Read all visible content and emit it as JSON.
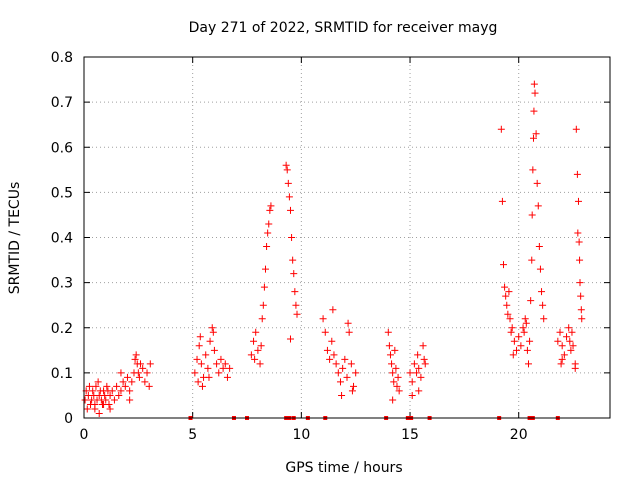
{
  "chart_data": {
    "type": "scatter",
    "title": "Day 271 of 2022, SRMTID for receiver mayg",
    "xlabel": "GPS time / hours",
    "ylabel": "SRMTID / TECUs",
    "xlim": [
      0,
      24.2
    ],
    "ylim": [
      0,
      0.8
    ],
    "xticks": [
      0,
      5,
      10,
      15,
      20
    ],
    "yticks": [
      0,
      0.1,
      0.2,
      0.3,
      0.4,
      0.5,
      0.6,
      0.7,
      0.8
    ],
    "xtick_labels": [
      "0",
      "5",
      "10",
      "15",
      "20"
    ],
    "ytick_labels": [
      "0",
      "0.1",
      "0.2",
      "0.3",
      "0.4",
      "0.5",
      "0.6",
      "0.7",
      "0.8"
    ],
    "grid": true,
    "marker": "plus",
    "color": "#ff0000",
    "series": [
      {
        "name": "SRMTID",
        "points": [
          [
            0.05,
            0.04
          ],
          [
            0.1,
            0.06
          ],
          [
            0.15,
            0.02
          ],
          [
            0.2,
            0.05
          ],
          [
            0.25,
            0.07
          ],
          [
            0.3,
            0.03
          ],
          [
            0.35,
            0.04
          ],
          [
            0.4,
            0.06
          ],
          [
            0.45,
            0.05
          ],
          [
            0.5,
            0.03
          ],
          [
            0.55,
            0.07
          ],
          [
            0.6,
            0.04
          ],
          [
            0.65,
            0.08
          ],
          [
            0.7,
            0.05
          ],
          [
            0.75,
            0.06
          ],
          [
            0.8,
            0.04
          ],
          [
            0.85,
            0.03
          ],
          [
            0.9,
            0.06
          ],
          [
            0.95,
            0.05
          ],
          [
            1.0,
            0.04
          ],
          [
            1.05,
            0.07
          ],
          [
            1.1,
            0.06
          ],
          [
            1.15,
            0.03
          ],
          [
            1.2,
            0.05
          ],
          [
            1.3,
            0.06
          ],
          [
            1.4,
            0.04
          ],
          [
            1.5,
            0.07
          ],
          [
            1.6,
            0.05
          ],
          [
            1.7,
            0.06
          ],
          [
            1.8,
            0.08
          ],
          [
            1.9,
            0.07
          ],
          [
            2.0,
            0.09
          ],
          [
            2.1,
            0.06
          ],
          [
            2.2,
            0.08
          ],
          [
            2.3,
            0.1
          ],
          [
            2.35,
            0.13
          ],
          [
            2.4,
            0.14
          ],
          [
            2.45,
            0.12
          ],
          [
            2.5,
            0.1
          ],
          [
            2.55,
            0.09
          ],
          [
            2.6,
            0.12
          ],
          [
            2.7,
            0.11
          ],
          [
            2.8,
            0.08
          ],
          [
            2.9,
            0.1
          ],
          [
            3.0,
            0.07
          ],
          [
            3.05,
            0.12
          ],
          [
            0.5,
            0.02
          ],
          [
            0.9,
            0.03
          ],
          [
            1.2,
            0.02
          ],
          [
            0.7,
            0.01
          ],
          [
            1.7,
            0.1
          ],
          [
            2.1,
            0.04
          ],
          [
            5.1,
            0.1
          ],
          [
            5.2,
            0.13
          ],
          [
            5.3,
            0.16
          ],
          [
            5.35,
            0.18
          ],
          [
            5.4,
            0.12
          ],
          [
            5.5,
            0.09
          ],
          [
            5.6,
            0.14
          ],
          [
            5.7,
            0.11
          ],
          [
            5.8,
            0.17
          ],
          [
            5.9,
            0.2
          ],
          [
            5.95,
            0.19
          ],
          [
            6.0,
            0.15
          ],
          [
            6.1,
            0.12
          ],
          [
            6.2,
            0.1
          ],
          [
            6.3,
            0.13
          ],
          [
            6.4,
            0.11
          ],
          [
            6.5,
            0.12
          ],
          [
            6.6,
            0.09
          ],
          [
            6.7,
            0.11
          ],
          [
            5.25,
            0.08
          ],
          [
            5.45,
            0.07
          ],
          [
            5.75,
            0.09
          ],
          [
            7.7,
            0.14
          ],
          [
            7.8,
            0.17
          ],
          [
            7.9,
            0.19
          ],
          [
            8.0,
            0.15
          ],
          [
            8.1,
            0.12
          ],
          [
            8.15,
            0.16
          ],
          [
            8.2,
            0.22
          ],
          [
            8.25,
            0.25
          ],
          [
            8.3,
            0.29
          ],
          [
            8.35,
            0.33
          ],
          [
            8.4,
            0.38
          ],
          [
            8.45,
            0.41
          ],
          [
            8.5,
            0.43
          ],
          [
            8.55,
            0.46
          ],
          [
            8.6,
            0.47
          ],
          [
            7.85,
            0.13
          ],
          [
            9.3,
            0.56
          ],
          [
            9.35,
            0.55
          ],
          [
            9.4,
            0.52
          ],
          [
            9.45,
            0.49
          ],
          [
            9.5,
            0.46
          ],
          [
            9.55,
            0.4
          ],
          [
            9.6,
            0.35
          ],
          [
            9.65,
            0.32
          ],
          [
            9.7,
            0.28
          ],
          [
            9.75,
            0.25
          ],
          [
            9.8,
            0.23
          ],
          [
            9.5,
            0.175
          ],
          [
            11.0,
            0.22
          ],
          [
            11.1,
            0.19
          ],
          [
            11.2,
            0.15
          ],
          [
            11.3,
            0.13
          ],
          [
            11.4,
            0.17
          ],
          [
            11.45,
            0.24
          ],
          [
            11.5,
            0.14
          ],
          [
            11.6,
            0.12
          ],
          [
            11.7,
            0.1
          ],
          [
            11.8,
            0.08
          ],
          [
            11.9,
            0.11
          ],
          [
            12.0,
            0.13
          ],
          [
            12.1,
            0.09
          ],
          [
            12.15,
            0.21
          ],
          [
            12.2,
            0.19
          ],
          [
            12.3,
            0.12
          ],
          [
            12.4,
            0.07
          ],
          [
            12.5,
            0.1
          ],
          [
            11.85,
            0.05
          ],
          [
            12.35,
            0.06
          ],
          [
            14.0,
            0.19
          ],
          [
            14.05,
            0.16
          ],
          [
            14.1,
            0.14
          ],
          [
            14.15,
            0.12
          ],
          [
            14.2,
            0.1
          ],
          [
            14.25,
            0.08
          ],
          [
            14.3,
            0.15
          ],
          [
            14.35,
            0.11
          ],
          [
            14.4,
            0.07
          ],
          [
            14.45,
            0.09
          ],
          [
            14.5,
            0.06
          ],
          [
            14.2,
            0.04
          ],
          [
            15.0,
            0.1
          ],
          [
            15.1,
            0.08
          ],
          [
            15.2,
            0.12
          ],
          [
            15.3,
            0.1
          ],
          [
            15.35,
            0.14
          ],
          [
            15.4,
            0.11
          ],
          [
            15.5,
            0.09
          ],
          [
            15.6,
            0.16
          ],
          [
            15.65,
            0.13
          ],
          [
            15.7,
            0.12
          ],
          [
            15.1,
            0.05
          ],
          [
            15.4,
            0.06
          ],
          [
            19.2,
            0.64
          ],
          [
            19.25,
            0.48
          ],
          [
            19.3,
            0.34
          ],
          [
            19.35,
            0.29
          ],
          [
            19.4,
            0.27
          ],
          [
            19.45,
            0.25
          ],
          [
            19.5,
            0.23
          ],
          [
            19.55,
            0.28
          ],
          [
            19.6,
            0.22
          ],
          [
            19.65,
            0.19
          ],
          [
            19.7,
            0.2
          ],
          [
            19.8,
            0.17
          ],
          [
            19.9,
            0.15
          ],
          [
            20.0,
            0.18
          ],
          [
            20.1,
            0.16
          ],
          [
            20.2,
            0.2
          ],
          [
            20.3,
            0.22
          ],
          [
            20.35,
            0.21
          ],
          [
            20.4,
            0.15
          ],
          [
            20.45,
            0.12
          ],
          [
            20.5,
            0.17
          ],
          [
            20.55,
            0.26
          ],
          [
            20.6,
            0.35
          ],
          [
            20.62,
            0.45
          ],
          [
            20.65,
            0.55
          ],
          [
            20.68,
            0.62
          ],
          [
            20.7,
            0.68
          ],
          [
            20.72,
            0.74
          ],
          [
            20.75,
            0.72
          ],
          [
            20.8,
            0.63
          ],
          [
            20.85,
            0.52
          ],
          [
            20.9,
            0.47
          ],
          [
            20.95,
            0.38
          ],
          [
            21.0,
            0.33
          ],
          [
            21.05,
            0.28
          ],
          [
            21.1,
            0.25
          ],
          [
            21.15,
            0.22
          ],
          [
            20.25,
            0.19
          ],
          [
            19.75,
            0.14
          ],
          [
            21.8,
            0.17
          ],
          [
            21.9,
            0.19
          ],
          [
            22.0,
            0.16
          ],
          [
            22.1,
            0.14
          ],
          [
            22.2,
            0.18
          ],
          [
            22.3,
            0.2
          ],
          [
            22.35,
            0.17
          ],
          [
            22.4,
            0.15
          ],
          [
            22.45,
            0.19
          ],
          [
            22.5,
            0.16
          ],
          [
            22.6,
            0.12
          ],
          [
            22.65,
            0.64
          ],
          [
            22.7,
            0.54
          ],
          [
            22.75,
            0.48
          ],
          [
            22.72,
            0.41
          ],
          [
            22.78,
            0.39
          ],
          [
            22.8,
            0.35
          ],
          [
            22.82,
            0.3
          ],
          [
            22.85,
            0.27
          ],
          [
            22.88,
            0.24
          ],
          [
            22.9,
            0.22
          ],
          [
            22.6,
            0.11
          ],
          [
            22.0,
            0.13
          ],
          [
            21.95,
            0.12
          ]
        ]
      },
      {
        "name": "baseline markers",
        "marker": "square",
        "points": [
          [
            4.9,
            0
          ],
          [
            6.9,
            0
          ],
          [
            7.5,
            0
          ],
          [
            9.3,
            0
          ],
          [
            9.45,
            0
          ],
          [
            9.65,
            0
          ],
          [
            10.3,
            0
          ],
          [
            11.1,
            0
          ],
          [
            13.9,
            0
          ],
          [
            14.9,
            0
          ],
          [
            15.05,
            0
          ],
          [
            15.9,
            0
          ],
          [
            19.1,
            0
          ],
          [
            20.5,
            0
          ],
          [
            20.65,
            0
          ],
          [
            21.8,
            0
          ]
        ]
      }
    ]
  }
}
